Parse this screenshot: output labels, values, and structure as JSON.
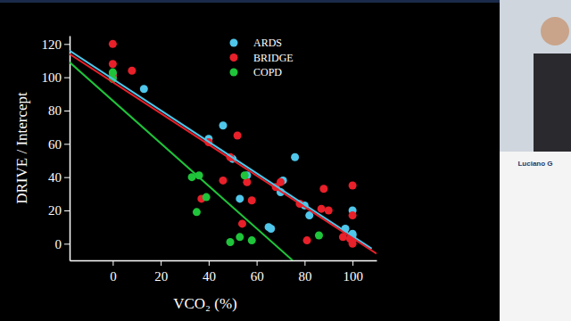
{
  "chart_data": {
    "type": "scatter",
    "x_label": "VCO₂ (%)",
    "y_label": "DRIVE / Intercept",
    "xlim": [
      -18,
      110
    ],
    "ylim": [
      -10,
      125
    ],
    "xticks": [
      0,
      20,
      40,
      60,
      80,
      100
    ],
    "yticks": [
      0,
      20,
      40,
      60,
      80,
      100,
      120
    ],
    "legend": "top",
    "series": [
      {
        "name": "ARDS",
        "color": "#4fc6ea",
        "x": [
          0,
          0,
          13,
          40,
          46,
          50,
          53,
          56,
          65,
          66,
          70,
          71,
          76,
          80,
          82,
          97,
          100,
          100,
          100
        ],
        "values": [
          102,
          100,
          93,
          63,
          71,
          51,
          27,
          41,
          10,
          9,
          31,
          38,
          52,
          23,
          17,
          9,
          20,
          6,
          5
        ],
        "fit": {
          "x": [
            -18,
            108
          ],
          "values": [
            116,
            -3
          ]
        }
      },
      {
        "name": "BRIDGE",
        "color": "#e8202a",
        "x": [
          0,
          0,
          0,
          8,
          37,
          40,
          46,
          49,
          52,
          54,
          56,
          58,
          68,
          70,
          78,
          81,
          87,
          88,
          90,
          96,
          99,
          100,
          100,
          100,
          100
        ],
        "values": [
          120,
          108,
          101,
          104,
          27,
          61,
          38,
          52,
          65,
          12,
          37,
          26,
          34,
          37,
          24,
          2,
          21,
          33,
          20,
          4,
          3,
          35,
          17,
          2,
          0
        ],
        "fit": {
          "x": [
            -18,
            110
          ],
          "values": [
            114,
            -6
          ]
        }
      },
      {
        "name": "COPD",
        "color": "#1fc43a",
        "x": [
          0,
          0,
          33,
          35,
          36,
          39,
          49,
          53,
          55,
          58,
          86
        ],
        "values": [
          103,
          99,
          40,
          19,
          41,
          28,
          1,
          4,
          41,
          2,
          5
        ],
        "fit": {
          "x": [
            -18,
            75
          ],
          "values": [
            109,
            -10
          ]
        }
      }
    ]
  },
  "speaker_label": "Luciano G"
}
